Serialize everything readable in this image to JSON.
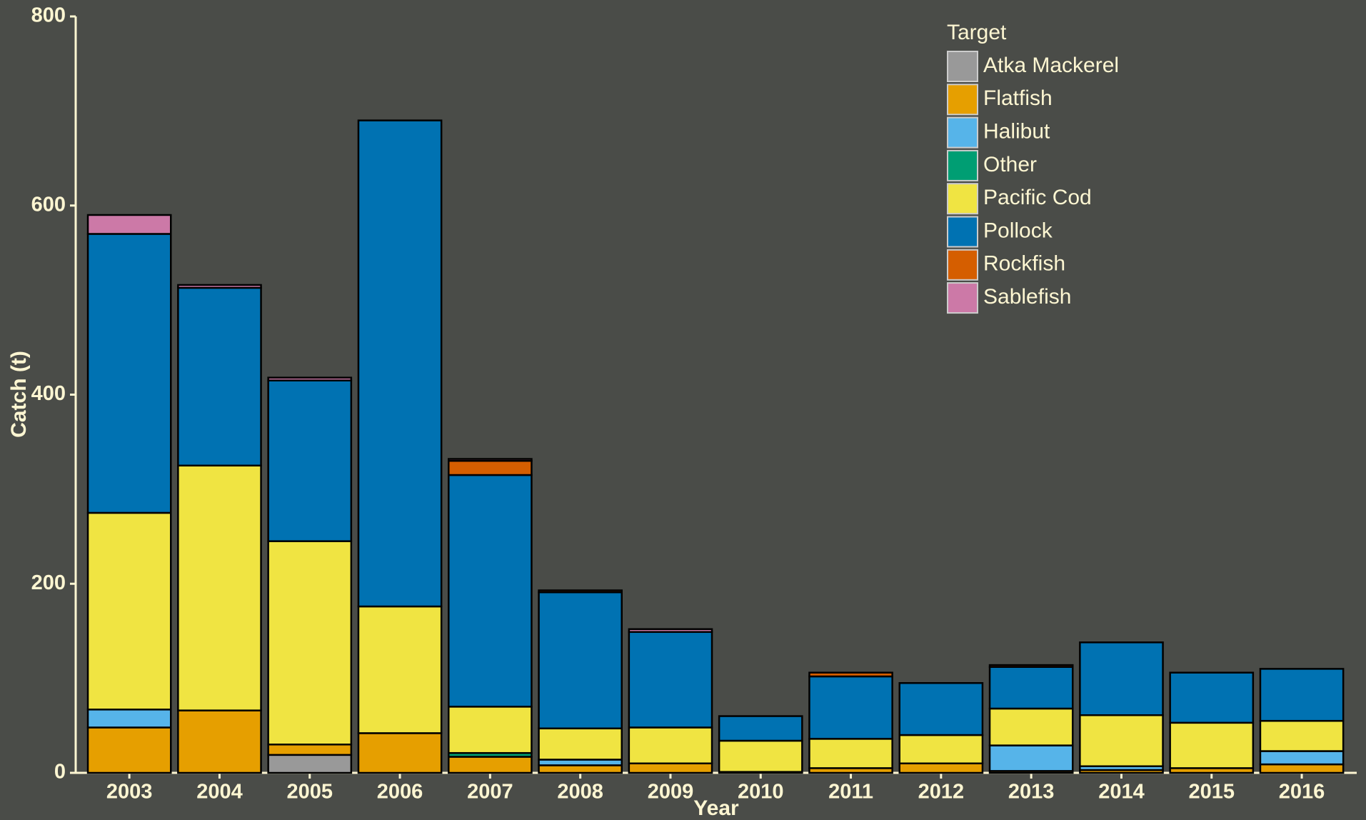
{
  "chart_data": {
    "type": "bar",
    "stacked": true,
    "x_label": "Year",
    "y_label": "Catch (t)",
    "legend_title": "Target",
    "legend_position": "top-right",
    "categories": [
      "2003",
      "2004",
      "2005",
      "2006",
      "2007",
      "2008",
      "2009",
      "2010",
      "2011",
      "2012",
      "2013",
      "2014",
      "2015",
      "2016"
    ],
    "ylim": [
      0,
      800
    ],
    "yticks": [
      0,
      200,
      400,
      600,
      800
    ],
    "series": [
      {
        "name": "Atka Mackerel",
        "color": "#999999",
        "values": [
          0,
          0,
          19,
          0,
          0,
          0,
          0,
          0,
          0,
          0,
          0,
          0,
          0,
          0
        ]
      },
      {
        "name": "Flatfish",
        "color": "#e69f00",
        "values": [
          48,
          66,
          11,
          42,
          17,
          8,
          10,
          1,
          5,
          10,
          2,
          3,
          5,
          9
        ]
      },
      {
        "name": "Halibut",
        "color": "#56b4e9",
        "values": [
          19,
          0,
          0,
          0,
          0,
          6,
          0,
          0,
          0,
          0,
          27,
          4,
          0,
          14
        ]
      },
      {
        "name": "Other",
        "color": "#009e73",
        "values": [
          0,
          0,
          0,
          0,
          4,
          0,
          0,
          0,
          0,
          0,
          0,
          0,
          0,
          0
        ]
      },
      {
        "name": "Pacific Cod",
        "color": "#f0e442",
        "values": [
          208,
          259,
          215,
          134,
          49,
          33,
          38,
          33,
          31,
          30,
          39,
          54,
          48,
          32
        ]
      },
      {
        "name": "Pollock",
        "color": "#0072b2",
        "values": [
          295,
          188,
          170,
          514,
          245,
          144,
          101,
          26,
          66,
          55,
          44,
          77,
          53,
          55
        ]
      },
      {
        "name": "Rockfish",
        "color": "#d55e00",
        "values": [
          0,
          0,
          0,
          0,
          15,
          2,
          0,
          0,
          4,
          0,
          2,
          0,
          0,
          0
        ]
      },
      {
        "name": "Sablefish",
        "color": "#cc79a7",
        "values": [
          20,
          3,
          3,
          0,
          2,
          0,
          3,
          0,
          0,
          0,
          0,
          0,
          0,
          0
        ]
      }
    ]
  }
}
